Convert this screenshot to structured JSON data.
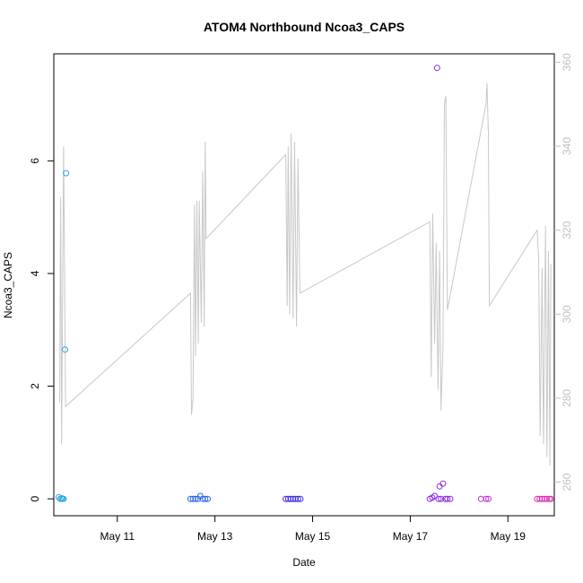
{
  "chart_data": {
    "type": "scatter",
    "title": "ATOM4 Northbound Ncoa3_CAPS",
    "xlabel": "Date",
    "ylabel": "Ncoa3_CAPS",
    "x_ticks": [
      "May 11",
      "May 13",
      "May 15",
      "May 17",
      "May 19"
    ],
    "x_tick_days": [
      11,
      13,
      15,
      17,
      19
    ],
    "xlim_days": [
      9.7,
      19.95
    ],
    "ylim_left": [
      -0.3,
      7.9
    ],
    "y_ticks_left": [
      0,
      2,
      4,
      6
    ],
    "ylim_right": [
      252,
      362
    ],
    "y_ticks_right": [
      260,
      280,
      300,
      320,
      340,
      360
    ],
    "grid": false,
    "line_series": {
      "color": "#c8c8c8",
      "axis": "right",
      "points": [
        [
          9.82,
          279
        ],
        [
          9.84,
          328
        ],
        [
          9.86,
          269
        ],
        [
          9.9,
          340
        ],
        [
          9.94,
          278
        ],
        [
          12.5,
          305
        ],
        [
          12.52,
          276
        ],
        [
          12.55,
          280
        ],
        [
          12.58,
          326
        ],
        [
          12.6,
          290
        ],
        [
          12.63,
          327
        ],
        [
          12.66,
          293
        ],
        [
          12.68,
          327
        ],
        [
          12.72,
          298
        ],
        [
          12.75,
          334
        ],
        [
          12.78,
          297
        ],
        [
          12.8,
          341
        ],
        [
          12.82,
          318
        ],
        [
          14.45,
          338
        ],
        [
          14.48,
          302
        ],
        [
          14.5,
          340
        ],
        [
          14.53,
          300
        ],
        [
          14.56,
          343
        ],
        [
          14.6,
          299
        ],
        [
          14.63,
          341
        ],
        [
          14.67,
          297
        ],
        [
          14.7,
          337
        ],
        [
          14.74,
          305
        ],
        [
          17.4,
          322
        ],
        [
          17.43,
          285
        ],
        [
          17.46,
          324
        ],
        [
          17.5,
          293
        ],
        [
          17.53,
          317
        ],
        [
          17.57,
          282
        ],
        [
          17.6,
          315
        ],
        [
          17.63,
          277
        ],
        [
          17.67,
          292
        ],
        [
          17.7,
          350
        ],
        [
          17.73,
          352
        ],
        [
          17.76,
          301
        ],
        [
          18.55,
          350
        ],
        [
          18.57,
          355
        ],
        [
          18.6,
          343
        ],
        [
          18.62,
          302
        ],
        [
          19.6,
          320
        ],
        [
          19.63,
          313
        ],
        [
          19.66,
          271
        ],
        [
          19.7,
          311
        ],
        [
          19.73,
          269
        ],
        [
          19.77,
          321
        ],
        [
          19.8,
          266
        ],
        [
          19.83,
          315
        ],
        [
          19.86,
          264
        ],
        [
          19.88,
          312
        ]
      ]
    },
    "scatter_series": [
      {
        "color": "#2ba8e0",
        "axis": "left",
        "points": [
          [
            9.8,
            0.03
          ],
          [
            9.83,
            0.0
          ],
          [
            9.86,
            0.01
          ],
          [
            9.88,
            0.0
          ],
          [
            9.9,
            0.0
          ],
          [
            9.93,
            2.65
          ],
          [
            9.95,
            5.78
          ]
        ]
      },
      {
        "color": "#2a62e6",
        "axis": "left",
        "points": [
          [
            12.5,
            0.0
          ],
          [
            12.55,
            0.0
          ],
          [
            12.6,
            0.0
          ],
          [
            12.65,
            0.0
          ],
          [
            12.7,
            0.05
          ],
          [
            12.75,
            0.0
          ],
          [
            12.8,
            0.0
          ],
          [
            12.85,
            0.0
          ]
        ]
      },
      {
        "color": "#3a2de6",
        "axis": "left",
        "points": [
          [
            14.45,
            0.0
          ],
          [
            14.5,
            0.0
          ],
          [
            14.55,
            0.0
          ],
          [
            14.6,
            0.0
          ],
          [
            14.65,
            0.0
          ],
          [
            14.7,
            0.0
          ],
          [
            14.75,
            0.0
          ]
        ]
      },
      {
        "color": "#8a2be6",
        "axis": "left",
        "points": [
          [
            17.4,
            0.0
          ],
          [
            17.45,
            0.02
          ],
          [
            17.5,
            0.05
          ],
          [
            17.55,
            7.65
          ],
          [
            17.58,
            0.0
          ],
          [
            17.6,
            0.22
          ],
          [
            17.63,
            0.0
          ],
          [
            17.67,
            0.27
          ],
          [
            17.72,
            0.0
          ],
          [
            17.76,
            0.0
          ],
          [
            17.82,
            0.0
          ]
        ]
      },
      {
        "color": "#c02bd8",
        "axis": "left",
        "points": [
          [
            18.45,
            0.0
          ],
          [
            18.55,
            0.0
          ],
          [
            18.6,
            0.0
          ]
        ]
      },
      {
        "color": "#e02bb0",
        "axis": "left",
        "points": [
          [
            19.6,
            0.0
          ],
          [
            19.65,
            0.0
          ],
          [
            19.7,
            0.0
          ],
          [
            19.75,
            0.0
          ],
          [
            19.8,
            0.0
          ],
          [
            19.85,
            0.0
          ],
          [
            19.88,
            0.0
          ]
        ]
      }
    ]
  }
}
